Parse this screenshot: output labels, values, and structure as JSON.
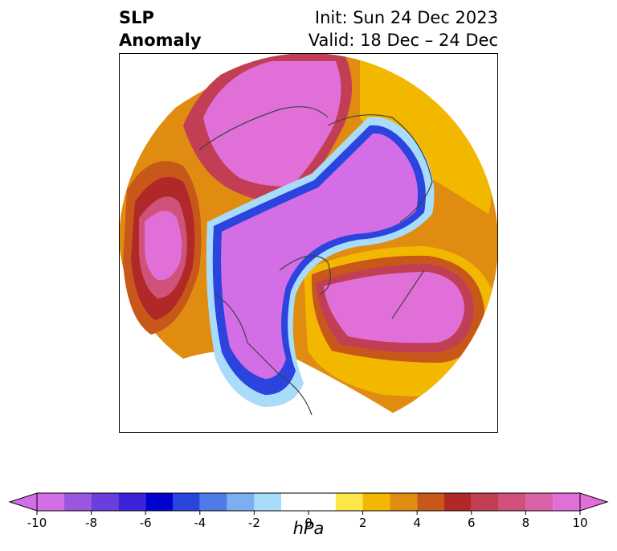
{
  "title": {
    "variable": "SLP",
    "variable_sub": "Anomaly",
    "init": "Init: Sun 24 Dec 2023",
    "valid": "Valid: 18 Dec – 24 Dec"
  },
  "colorbar": {
    "units": "hPa",
    "tick_labels": [
      "-10",
      "-8",
      "-6",
      "-4",
      "-2",
      "0",
      "2",
      "4",
      "6",
      "8",
      "10"
    ],
    "bins": [
      {
        "from": -10,
        "to": -9,
        "color": "#d46ee6"
      },
      {
        "from": -9,
        "to": -8,
        "color": "#9b55e0"
      },
      {
        "from": -8,
        "to": -7,
        "color": "#6a3ddd"
      },
      {
        "from": -7,
        "to": -6,
        "color": "#3c22d8"
      },
      {
        "from": -6,
        "to": -5,
        "color": "#0000d0"
      },
      {
        "from": -5,
        "to": -4,
        "color": "#2a44dd"
      },
      {
        "from": -4,
        "to": -3,
        "color": "#4f7ae8"
      },
      {
        "from": -3,
        "to": -2,
        "color": "#7ab0f0"
      },
      {
        "from": -2,
        "to": -1,
        "color": "#a8dcfa"
      },
      {
        "from": -1,
        "to": 1,
        "color": "#ffffff"
      },
      {
        "from": 1,
        "to": 2,
        "color": "#fde64a"
      },
      {
        "from": 2,
        "to": 3,
        "color": "#f2b800"
      },
      {
        "from": 3,
        "to": 4,
        "color": "#e08c10"
      },
      {
        "from": 4,
        "to": 5,
        "color": "#c8581a"
      },
      {
        "from": 5,
        "to": 6,
        "color": "#b02828"
      },
      {
        "from": 6,
        "to": 7,
        "color": "#c23e55"
      },
      {
        "from": 7,
        "to": 8,
        "color": "#d0527a"
      },
      {
        "from": 8,
        "to": 9,
        "color": "#db62a8"
      },
      {
        "from": 9,
        "to": 10,
        "color": "#e070d8"
      }
    ],
    "under_color": "#d46ee6",
    "over_color": "#e070d8"
  }
}
